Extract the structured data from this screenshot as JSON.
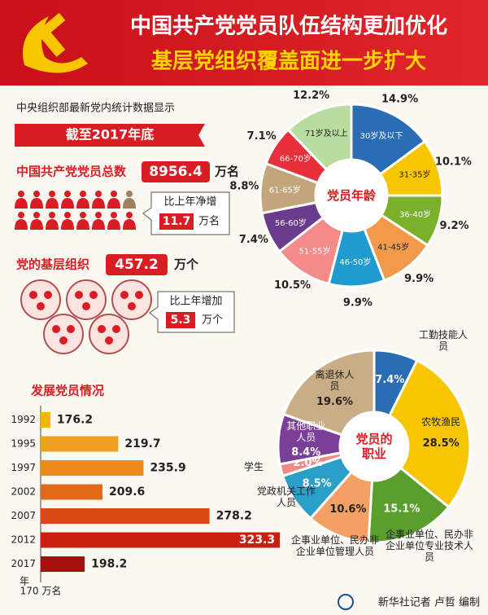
{
  "header": {
    "title": "中国共产党党员队伍结构更加优化",
    "subtitle": "基层党组织覆盖面进一步扩大"
  },
  "stats": {
    "source": "中央组织部最新党内统计数据显示",
    "as_of": "截至2017年底",
    "members": {
      "label": "中国共产党党员总数",
      "value": 8956.4,
      "unit": "万名",
      "change_label": "比上年净增",
      "change": 11.7,
      "change_unit": "万名"
    },
    "organizations": {
      "label": "党的基层组织",
      "value": 457.2,
      "unit": "万个",
      "change_label": "比上年增加",
      "change": 5.3,
      "change_unit": "万个"
    }
  },
  "chart_data": [
    {
      "type": "pie",
      "title": "党员年龄",
      "categories": [
        "30岁及以下",
        "31-35岁",
        "36-40岁",
        "41-45岁",
        "46-50岁",
        "51-55岁",
        "56-60岁",
        "61-65岁",
        "66-70岁",
        "71岁及以上"
      ],
      "values": [
        14.9,
        10.1,
        9.2,
        9.9,
        9.9,
        10.5,
        7.4,
        8.8,
        7.1,
        12.2
      ],
      "value_labels": [
        "14.9%",
        "10.1%",
        "9.2%",
        "9.9%",
        "9.9%",
        "10.5%",
        "7.4%",
        "8.8%",
        "7.1%",
        "12.2%"
      ],
      "colors": [
        "#2a6db5",
        "#f7c600",
        "#7ab02a",
        "#f29a4a",
        "#1f9bd0",
        "#f58a8a",
        "#6b3b8e",
        "#c2a57b",
        "#e8303a",
        "#b9dda0"
      ]
    },
    {
      "type": "pie",
      "title": "党员的职业",
      "categories": [
        "工勤技能人员",
        "农牧渔民",
        "企事业单位、民办非企业单位专业技术人员",
        "企事业单位、民办非企业单位管理人员",
        "党政机关工作人员",
        "学生",
        "其他职业人员",
        "离退休人员"
      ],
      "values": [
        7.4,
        28.5,
        15.1,
        10.6,
        8.5,
        2.0,
        8.4,
        19.6
      ],
      "value_labels": [
        "7.4%",
        "28.5%",
        "15.1%",
        "10.6%",
        "8.5%",
        "2.0%",
        "8.4%",
        "19.6%"
      ],
      "colors": [
        "#2a6db5",
        "#f7c600",
        "#5a9e2e",
        "#f4a064",
        "#2aa0c8",
        "#f08a8a",
        "#7a3f96",
        "#c9ad86"
      ]
    },
    {
      "type": "bar",
      "orientation": "horizontal",
      "title": "发展党员情况",
      "categories": [
        "1992",
        "1995",
        "1997",
        "2002",
        "2007",
        "2012",
        "2017"
      ],
      "values": [
        176.2,
        219.7,
        235.9,
        209.6,
        278.2,
        323.3,
        198.2
      ],
      "colors": [
        "#f6b400",
        "#f0a020",
        "#ec8a1c",
        "#e06a18",
        "#d84a14",
        "#c8200e",
        "#a81010"
      ],
      "xlim": [
        170,
        330
      ],
      "xticks": [
        {
          "value": 170,
          "label": "170 万名"
        }
      ],
      "ylabel": "年"
    }
  ],
  "footer": {
    "credit": "新华社记者 卢哲 编制"
  }
}
